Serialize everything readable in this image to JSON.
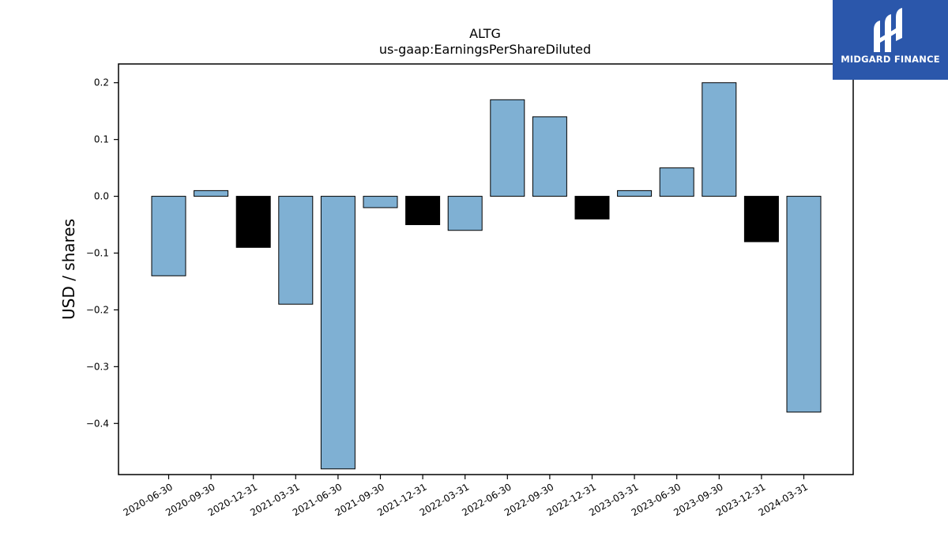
{
  "chart_data": {
    "type": "bar",
    "title": "ALTG",
    "subtitle": "us-gaap:EarningsPerShareDiluted",
    "xlabel": "",
    "ylabel": "USD / shares",
    "categories": [
      "2020-06-30",
      "2020-09-30",
      "2020-12-31",
      "2021-03-31",
      "2021-06-30",
      "2021-09-30",
      "2021-12-31",
      "2022-03-31",
      "2022-06-30",
      "2022-09-30",
      "2022-12-31",
      "2023-03-31",
      "2023-06-30",
      "2023-09-30",
      "2023-12-31",
      "2024-03-31"
    ],
    "values": [
      -0.14,
      0.01,
      -0.09,
      -0.19,
      -0.48,
      -0.02,
      -0.05,
      -0.06,
      0.17,
      0.14,
      -0.04,
      0.01,
      0.05,
      0.2,
      -0.08,
      -0.38
    ],
    "bar_colors": [
      "#7fb0d3",
      "#7fb0d3",
      "#000000",
      "#7fb0d3",
      "#7fb0d3",
      "#7fb0d3",
      "#000000",
      "#7fb0d3",
      "#7fb0d3",
      "#7fb0d3",
      "#000000",
      "#7fb0d3",
      "#7fb0d3",
      "#7fb0d3",
      "#000000",
      "#7fb0d3"
    ],
    "yticks": [
      "0.2",
      "0.1",
      "0.0",
      "−0.1",
      "−0.2",
      "−0.3",
      "−0.4"
    ],
    "ytick_values": [
      0.2,
      0.1,
      0.0,
      -0.1,
      -0.2,
      -0.3,
      -0.4
    ],
    "ylim": [
      -0.49,
      0.233
    ],
    "grid": false,
    "legend": "none"
  },
  "logo": {
    "text": "MIDGARD FINANCE",
    "icon": "midgard-logo-icon",
    "background": "#2b57ab"
  }
}
